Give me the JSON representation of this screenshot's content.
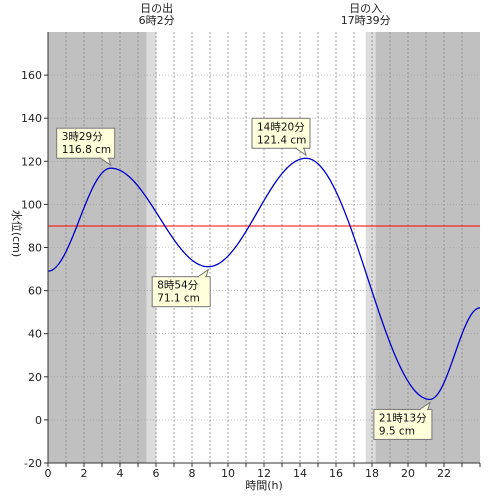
{
  "chart_data": {
    "type": "line",
    "title": "",
    "xlabel": "時間(h)",
    "ylabel": "水位(cm)",
    "xlim": [
      0,
      24
    ],
    "ylim": [
      -20,
      180
    ],
    "x_ticks": [
      0,
      2,
      4,
      6,
      8,
      10,
      12,
      14,
      16,
      18,
      20,
      22
    ],
    "y_ticks": [
      -20,
      0,
      20,
      40,
      60,
      80,
      100,
      120,
      140,
      160
    ],
    "grid": true,
    "reference_line": {
      "y": 90,
      "color": "#ff0000"
    },
    "sunrise": {
      "title": "日の出",
      "time_label": "6時2分",
      "hour": 6.033
    },
    "sunset": {
      "title": "日の入",
      "time_label": "17時39分",
      "hour": 17.65
    },
    "night_color": "#c0c0c0",
    "twilight_color": "#dcdcdc",
    "series": [
      {
        "color": "#0000cc",
        "x": [
          0,
          3.483,
          8.9,
          14.333,
          21.217,
          24
        ],
        "y": [
          69,
          116.8,
          71.1,
          121.4,
          9.5,
          52
        ]
      }
    ],
    "annotations": [
      {
        "time": "3時29分",
        "value": "116.8 cm",
        "x": 3.483,
        "y": 116.8,
        "side": "above"
      },
      {
        "time": "8時54分",
        "value": "71.1 cm",
        "x": 8.9,
        "y": 71.1,
        "side": "below"
      },
      {
        "time": "14時20分",
        "value": "121.4 cm",
        "x": 14.333,
        "y": 121.4,
        "side": "above"
      },
      {
        "time": "21時13分",
        "value": "9.5 cm",
        "x": 21.217,
        "y": 9.5,
        "side": "below"
      }
    ]
  }
}
